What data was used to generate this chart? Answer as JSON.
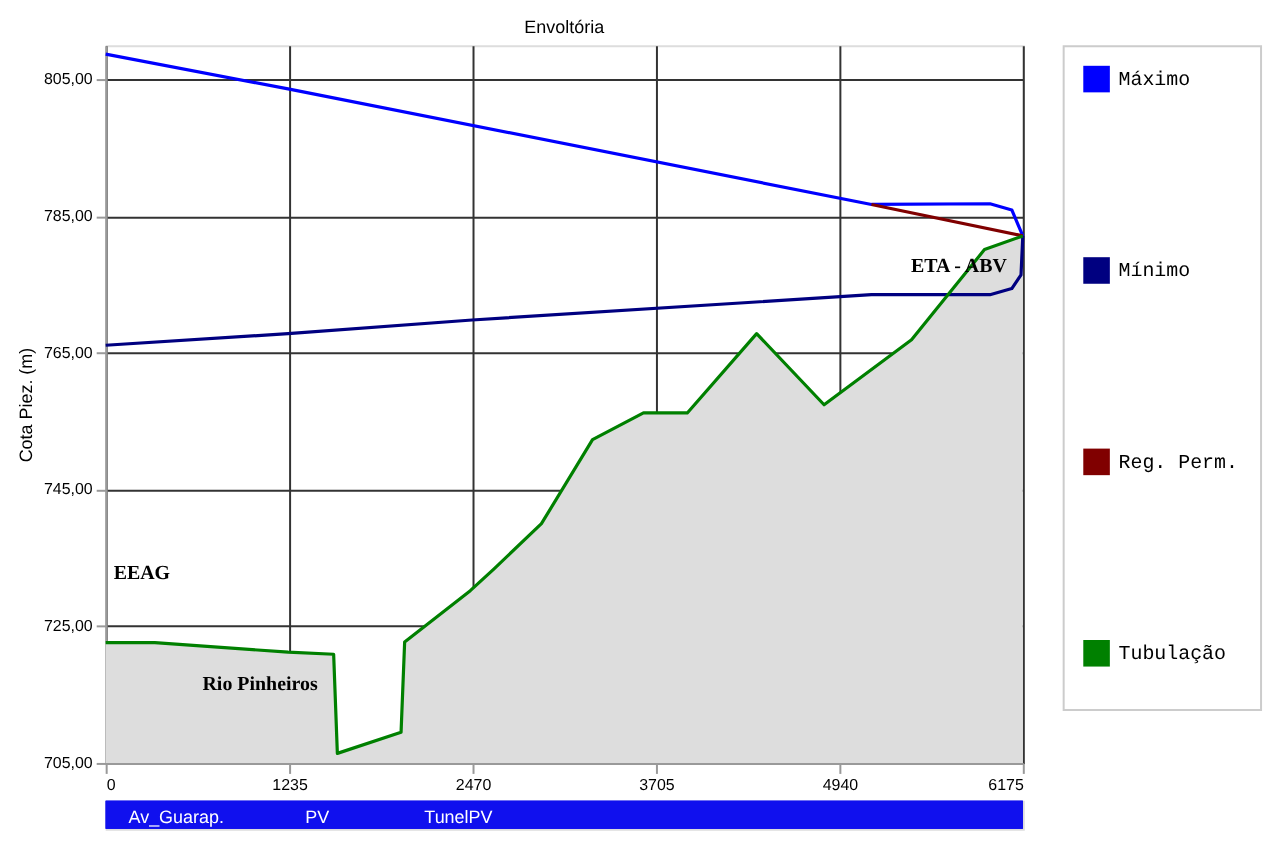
{
  "chart_data": {
    "type": "line",
    "title": "Envoltória",
    "ylabel": "Cota Piez. (m)",
    "xlim": [
      0,
      6175
    ],
    "xticks": [
      0,
      1235,
      2470,
      3705,
      4940,
      6175
    ],
    "ylim": [
      705,
      810
    ],
    "yticks": [
      {
        "value": 705,
        "label": "705,00"
      },
      {
        "value": 725,
        "label": "725,00"
      },
      {
        "value": 745,
        "label": "745,00"
      },
      {
        "value": 765,
        "label": "765,00"
      },
      {
        "value": 785,
        "label": "785,00"
      },
      {
        "value": 805,
        "label": "805,00"
      }
    ],
    "grid": true,
    "legend": "right",
    "marker": "none",
    "line_style": "solid",
    "series": [
      {
        "name": "Máximo",
        "color": "#0000ff",
        "x": [
          0,
          1228,
          5156,
          5954,
          6101,
          6175
        ],
        "values": [
          808.7,
          803.6,
          786.7,
          786.8,
          785.9,
          782.1
        ]
      },
      {
        "name": "Mínimo",
        "color": "#000080",
        "x": [
          0,
          1228,
          2467,
          5156,
          5954,
          6101,
          6163,
          6175
        ],
        "values": [
          766.1,
          767.8,
          769.8,
          773.5,
          773.5,
          774.4,
          776.4,
          782.1
        ]
      },
      {
        "name": "Reg. Perm.",
        "color": "#800000",
        "x": [
          5156,
          6175
        ],
        "values": [
          786.7,
          782.1
        ]
      },
      {
        "name": "Tubulação",
        "color": "#008000",
        "type": "area",
        "x": [
          0,
          331,
          1228,
          1535,
          1560,
          1989,
          2013,
          2455,
          2615,
          2934,
          3278,
          3621,
          3916,
          4383,
          4837,
          5426,
          5917,
          6175
        ],
        "values": [
          722.6,
          722.6,
          721.2,
          720.9,
          706.4,
          709.5,
          722.7,
          730.2,
          733.4,
          740,
          752.3,
          756.2,
          756.2,
          767.8,
          757.4,
          766.9,
          780.1,
          782.1
        ]
      }
    ],
    "annotations": [
      {
        "text": "EEAG",
        "x": 0,
        "y": 722.6
      },
      {
        "text": "Rio Pinheiros",
        "x": 1535,
        "y": 720.9
      },
      {
        "text": "ETA - ABV",
        "x": 6175,
        "y": 782.1
      },
      "Av_Guarap.",
      "PV",
      "TunelPV"
    ]
  }
}
